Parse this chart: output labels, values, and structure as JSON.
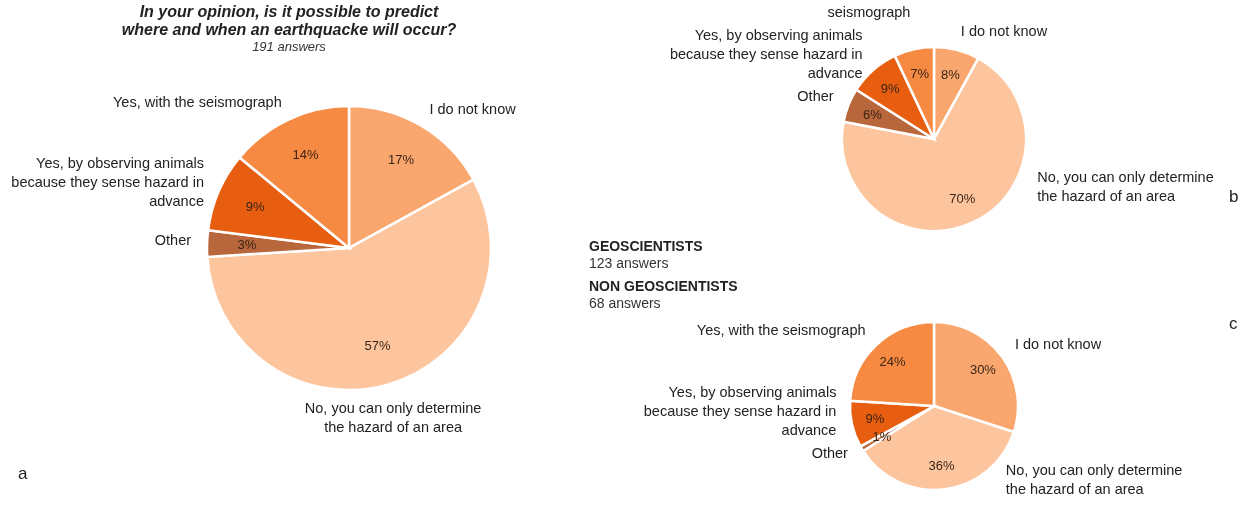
{
  "chart_data": [
    {
      "type": "pie",
      "title": "In your opinion, is it possible to predict where and when an earthquacke will occur?",
      "subtitle": "191 answers",
      "categories": [
        "I do not know",
        "No, you can only determine the hazard of an area",
        "Other",
        "Yes, by observing animals because they sense hazard in advance",
        "Yes, with the seismograph"
      ],
      "values": [
        17,
        57,
        3,
        9,
        14
      ],
      "value_labels": [
        "17%",
        "57%",
        "3%",
        "9%",
        "14%"
      ],
      "colors": [
        "#f9a76e",
        "#fdc59e",
        "#b8663b",
        "#e85e10",
        "#f68a42"
      ],
      "annotations": [
        "a"
      ]
    },
    {
      "type": "pie",
      "title": "GEOSCIENTISTS",
      "subtitle": "123 answers",
      "categories": [
        "I do not know",
        "No, you can only determine the hazard of an area",
        "Other",
        "Yes, by observing animals because they sense hazard in advance",
        "seismograph"
      ],
      "values": [
        8,
        70,
        6,
        9,
        7
      ],
      "value_labels": [
        "8%",
        "70%",
        "6%",
        "9%",
        "7%"
      ],
      "colors": [
        "#f9a76e",
        "#fdc59e",
        "#b8663b",
        "#e85e10",
        "#f68a42"
      ],
      "annotations": [
        "b"
      ]
    },
    {
      "type": "pie",
      "title": "NON GEOSCIENTISTS",
      "subtitle": "68 answers",
      "categories": [
        "I do not know",
        "No, you can only determine the hazard of an area",
        "Other",
        "Yes, by observing animals because they sense hazard in advance",
        "Yes, with the seismograph"
      ],
      "values": [
        30,
        36,
        1,
        9,
        24
      ],
      "value_labels": [
        "30%",
        "36%",
        "1%",
        "9%",
        "24%"
      ],
      "colors": [
        "#f9a76e",
        "#fdc59e",
        "#b8663b",
        "#e85e10",
        "#f68a42"
      ],
      "annotations": [
        "c"
      ]
    }
  ]
}
